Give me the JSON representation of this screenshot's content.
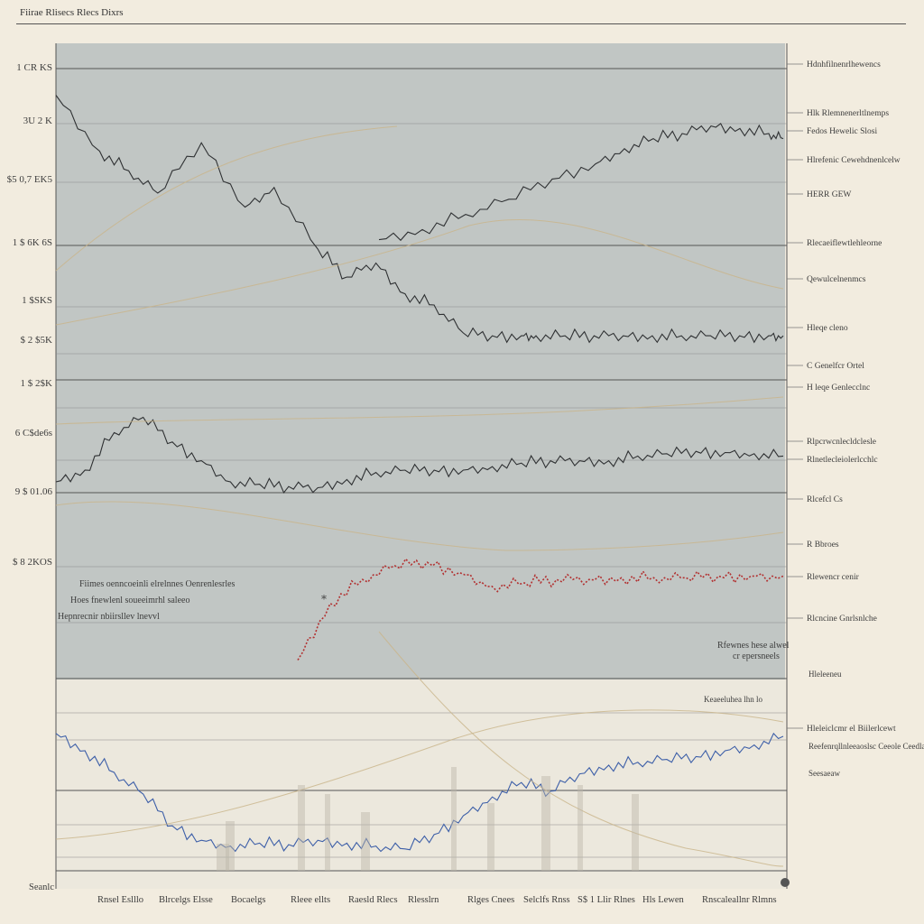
{
  "header": {
    "title": "Fiirae Rlisecs Rlecs Dixrs"
  },
  "colors": {
    "background": "#f2ecdf",
    "panel_upper": "#b8c0bf",
    "panel_lower": "#ece8dd",
    "series_dark": "#2f3133",
    "series_red": "#b23030",
    "series_blue": "#3d5fa8",
    "series_tan": "#c9b48a"
  },
  "chart_data": [
    {
      "type": "line",
      "title": "",
      "y_tick_labels": [
        "1 CR KS",
        "3U 2 K",
        "$5 0,7 EK5",
        "1 $ 6K 6S",
        "1 $SKS",
        "$ 2 $5K",
        "1 $ 2$K",
        "6 C$de6s",
        "9 $ 01.06",
        "$ 8 2KOS"
      ],
      "right_labels": [
        "Hdnhfilnenrlhewencs",
        "Hlk  Rlemnenerltlnemps",
        "Fedos  Hewelic  Slosi",
        "Hlrefenic  Cewehdnenlcelw",
        "HERR GEW",
        "Rlecaeiflewtlehleorne",
        "Qewulcelnenmcs",
        "Hleqe cleno",
        "C Genelfcr Ortel",
        "H leqe Genlecclnc",
        "Rlpcrwcnlecldclesle",
        "Rlnetlecleiolerlcchlc",
        "Rlcefcl Cs",
        "R Bbroes",
        "Rlewencr cenir",
        "Rlcncine Gnrlsnlche",
        "Hleleiclcmr el  Biilerlcewt"
      ],
      "annotations": [
        "Hoes  fnewlenl soueeimrhl saleeo",
        "Fiimes oenncoeinli elrelnnes Oenrenlesrles",
        "Hepnrecnir  nbiirsllev lnevvl",
        "Rfewnes  hese alwel",
        "cr epersneels"
      ],
      "series": [
        {
          "name": "upper-black",
          "color": "#2f3133",
          "x": [
            0,
            6,
            10,
            14,
            20,
            26,
            30,
            36,
            40,
            44,
            48,
            52,
            56,
            60,
            64,
            66,
            70,
            74,
            78,
            82,
            86,
            90,
            94,
            98,
            100
          ],
          "y": [
            95,
            75,
            68,
            60,
            78,
            55,
            62,
            40,
            30,
            35,
            24,
            20,
            10,
            9,
            9,
            9,
            9,
            9,
            9,
            9,
            9,
            9,
            9,
            9,
            9
          ]
        },
        {
          "name": "upper-rise",
          "color": "#2f3133",
          "x": [
            44,
            50,
            56,
            62,
            68,
            74,
            78,
            82,
            86,
            90,
            94,
            98,
            100
          ],
          "y": [
            48,
            52,
            58,
            64,
            72,
            78,
            84,
            88,
            90,
            93,
            92,
            90,
            88
          ]
        },
        {
          "name": "middle-black",
          "color": "#2f3133",
          "x": [
            0,
            4,
            8,
            12,
            16,
            20,
            24,
            28,
            32,
            36,
            40,
            44,
            48,
            52,
            56,
            60,
            64,
            68,
            72,
            76,
            80,
            84,
            88,
            92,
            96,
            100
          ],
          "y": [
            20,
            30,
            62,
            75,
            54,
            38,
            20,
            18,
            16,
            15,
            22,
            28,
            30,
            30,
            30,
            33,
            36,
            38,
            38,
            38,
            42,
            44,
            46,
            45,
            44,
            42
          ]
        },
        {
          "name": "red-dotted",
          "color": "#b23030",
          "x": [
            40,
            44,
            48,
            52,
            56,
            60,
            64,
            68,
            72,
            76,
            80,
            84,
            88,
            92,
            96,
            100
          ],
          "y": [
            15,
            48,
            62,
            70,
            72,
            66,
            58,
            60,
            62,
            62,
            63,
            63,
            63,
            64,
            64,
            64
          ]
        },
        {
          "name": "lower-blue",
          "color": "#3d5fa8",
          "x": [
            0,
            4,
            8,
            12,
            16,
            20,
            24,
            28,
            32,
            36,
            40,
            44,
            48,
            52,
            56,
            60,
            64,
            68,
            72,
            76,
            80,
            84,
            88,
            92,
            96,
            100
          ],
          "y": [
            92,
            80,
            65,
            50,
            28,
            18,
            14,
            16,
            15,
            18,
            16,
            14,
            12,
            22,
            35,
            48,
            58,
            52,
            64,
            70,
            72,
            74,
            76,
            80,
            84,
            90
          ]
        }
      ]
    }
  ],
  "x_tick_labels": [
    "Seanlc",
    "Rnsel Eslllo",
    "Blrcelgs Elsse",
    "Bocaelgs",
    "Rleee ellts",
    "Raesld Rlecs",
    "Rlesslrn",
    "Rlges Cnees",
    "Selclfs Rnss",
    "S$ 1 Llir Rlnes",
    "Hls Lewen",
    "Rnscaleallnr Rlmns"
  ],
  "small_labels": [
    "Keaeeluhea lhn lo",
    "Hleleeneu",
    "Reefenrqllnleeaoslsc  Ceeole Ceedlalss",
    "Seesaeaw"
  ]
}
